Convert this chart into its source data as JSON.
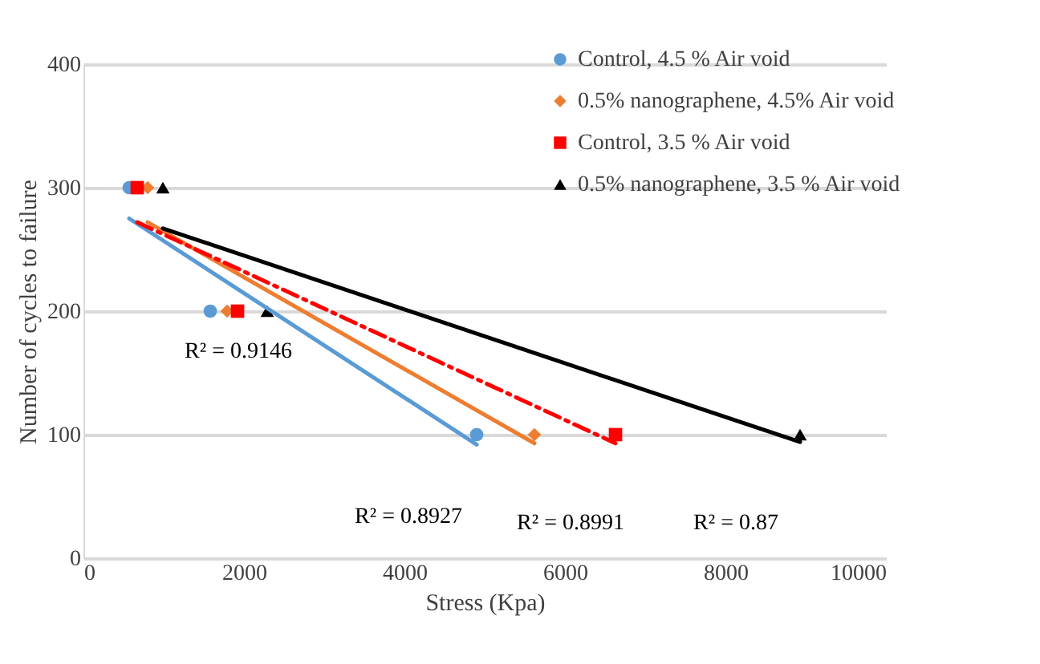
{
  "chart_data": {
    "type": "scatter",
    "xlabel": "Stress (Kpa)",
    "ylabel": "Number of cycles to failure",
    "xlim": [
      0,
      10000
    ],
    "xticks": [
      0,
      2000,
      4000,
      6000,
      8000,
      10000
    ],
    "ylim": [
      0,
      400
    ],
    "yticks": [
      0,
      100,
      200,
      300,
      400
    ],
    "grid": "y",
    "legend": "top right",
    "series": [
      {
        "name": "Control, 4.5 % Air void",
        "color": "#5b9bd5",
        "marker": "circle",
        "x": [
          570,
          1580,
          4900
        ],
        "values": [
          300,
          200,
          100
        ]
      },
      {
        "name": "0.5% nanographene, 4.5% Air void",
        "color": "#ed7d31",
        "marker": "diamond",
        "x": [
          800,
          1790,
          5620
        ],
        "values": [
          300,
          200,
          100
        ]
      },
      {
        "name": "Control, 3.5 % Air void",
        "color": "#ff0000",
        "marker": "square",
        "x": [
          670,
          1920,
          6630
        ],
        "values": [
          300,
          200,
          100
        ]
      },
      {
        "name": "0.5% nanographene, 3.5 % Air void",
        "color": "#000000",
        "marker": "triangle",
        "x": [
          990,
          2290,
          8930
        ],
        "values": [
          300,
          200,
          100
        ]
      },
      {
        "type": "line",
        "color": "#5b9bd5",
        "line_style": "solid",
        "x": [
          570,
          4900
        ],
        "values": [
          275,
          92
        ]
      },
      {
        "type": "line",
        "color": "#ed7d31",
        "line_style": "solid",
        "x": [
          800,
          5620
        ],
        "values": [
          272,
          93
        ]
      },
      {
        "type": "line",
        "color": "#ff0000",
        "line_style": "dashed",
        "x": [
          670,
          6630
        ],
        "values": [
          272,
          93
        ]
      },
      {
        "type": "line",
        "color": "#000000",
        "line_style": "solid",
        "x": [
          990,
          8930
        ],
        "values": [
          267,
          94
        ]
      }
    ],
    "annotations": [
      "R² = 0.9146",
      "R² = 0.8927",
      "R² = 0.8991",
      "R² = 0.87"
    ]
  }
}
